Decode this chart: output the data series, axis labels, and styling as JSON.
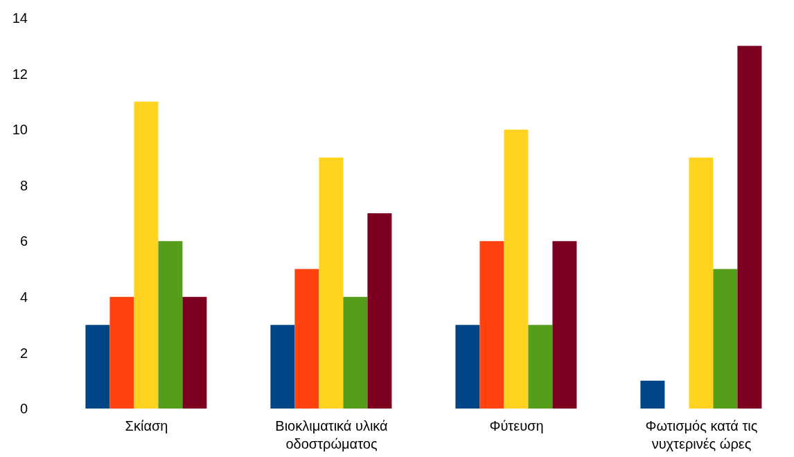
{
  "chart_data": {
    "type": "bar",
    "categories": [
      "Σκίαση",
      "Βιοκλιματικά υλικά οδοστρώματος",
      "Φύτευση",
      "Φωτισμός κατά τις νυχτερινές ώρες"
    ],
    "series": [
      {
        "color": "#004586",
        "values": [
          3,
          3,
          3,
          1
        ]
      },
      {
        "color": "#ff420e",
        "values": [
          4,
          5,
          6,
          0
        ]
      },
      {
        "color": "#ffd320",
        "values": [
          11,
          9,
          10,
          9
        ]
      },
      {
        "color": "#579d1c",
        "values": [
          6,
          4,
          3,
          5
        ]
      },
      {
        "color": "#7e0021",
        "values": [
          4,
          7,
          6,
          13
        ]
      }
    ],
    "ylim": [
      0,
      14
    ],
    "yticks": [
      0,
      2,
      4,
      6,
      8,
      10,
      12,
      14
    ],
    "grid": false,
    "legend": false
  }
}
